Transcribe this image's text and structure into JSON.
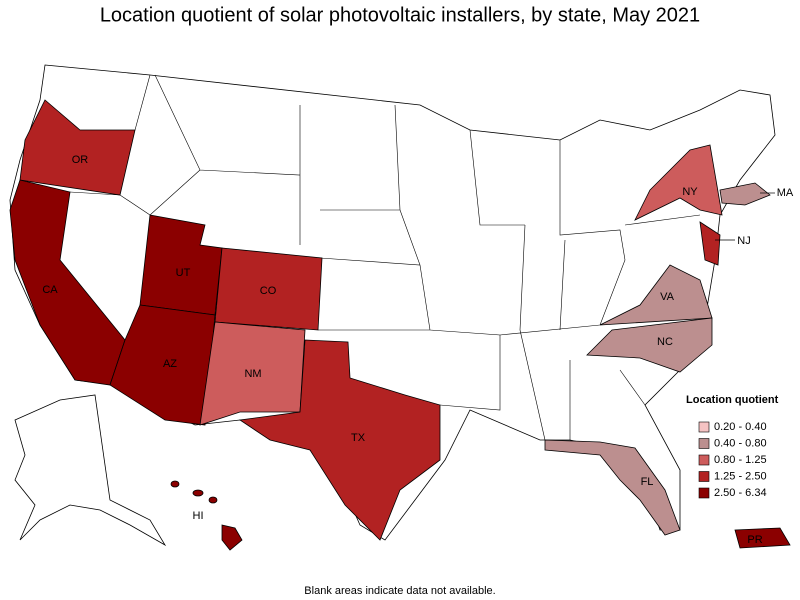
{
  "title": "Location quotient of solar photovoltaic installers, by state, May 2021",
  "legend": {
    "title": "Location quotient",
    "items": [
      {
        "label": "0.20 - 0.40",
        "color": "#f5c3c3"
      },
      {
        "label": "0.40 - 0.80",
        "color": "#bc8f8f"
      },
      {
        "label": "0.80 - 1.25",
        "color": "#cd5c5c"
      },
      {
        "label": "1.25 - 2.50",
        "color": "#b22222"
      },
      {
        "label": "2.50 - 6.34",
        "color": "#8b0000"
      }
    ]
  },
  "states": [
    {
      "label": "OR",
      "color": "#b22222"
    },
    {
      "label": "CA",
      "color": "#8b0000"
    },
    {
      "label": "UT",
      "color": "#8b0000"
    },
    {
      "label": "AZ",
      "color": "#8b0000"
    },
    {
      "label": "CO",
      "color": "#b22222"
    },
    {
      "label": "NM",
      "color": "#cd5c5c"
    },
    {
      "label": "TX",
      "color": "#b22222"
    },
    {
      "label": "NY",
      "color": "#cd5c5c"
    },
    {
      "label": "MA",
      "color": "#bc8f8f"
    },
    {
      "label": "NJ",
      "color": "#b22222"
    },
    {
      "label": "VA",
      "color": "#bc8f8f"
    },
    {
      "label": "NC",
      "color": "#bc8f8f"
    },
    {
      "label": "FL",
      "color": "#bc8f8f"
    },
    {
      "label": "HI",
      "color": "#8b0000"
    },
    {
      "label": "PR",
      "color": "#8b0000"
    }
  ],
  "footnote": "Blank areas indicate data not available."
}
